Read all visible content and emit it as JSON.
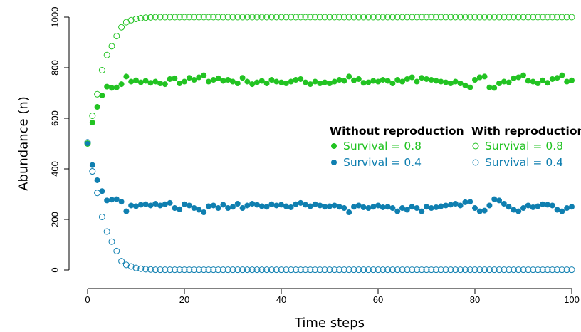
{
  "chart_data": {
    "type": "scatter",
    "xlabel": "Time steps",
    "ylabel": "Abundance (n)",
    "xlim": [
      0,
      100
    ],
    "ylim": [
      0,
      1000
    ],
    "xticks": [
      0,
      20,
      40,
      60,
      80,
      100
    ],
    "yticks": [
      0,
      200,
      400,
      600,
      800,
      1000
    ],
    "grid": false,
    "colors": {
      "green": "#22c322",
      "blue": "#0f7fb0"
    },
    "legend": {
      "placement": "right",
      "groups": [
        {
          "heading": "Without reproduction",
          "marker": "filled",
          "entries": [
            {
              "label": "Survival = 0.8",
              "color": "#22c322"
            },
            {
              "label": "Survival = 0.4",
              "color": "#0f7fb0"
            }
          ]
        },
        {
          "heading": "With reproduction",
          "marker": "open",
          "entries": [
            {
              "label": "Survival = 0.8",
              "color": "#22c322"
            },
            {
              "label": "Survival = 0.4",
              "color": "#0f7fb0"
            }
          ]
        }
      ]
    },
    "series": [
      {
        "marker": "filled",
        "color": "#22c322",
        "x": [
          0,
          1,
          2,
          3,
          4,
          5,
          6,
          7,
          8,
          9,
          10,
          11,
          12,
          13,
          14,
          15,
          16,
          17,
          18,
          19,
          20,
          21,
          22,
          23,
          24,
          25,
          26,
          27,
          28,
          29,
          30,
          31,
          32,
          33,
          34,
          35,
          36,
          37,
          38,
          39,
          40,
          41,
          42,
          43,
          44,
          45,
          46,
          47,
          48,
          49,
          50,
          51,
          52,
          53,
          54,
          55,
          56,
          57,
          58,
          59,
          60,
          61,
          62,
          63,
          64,
          65,
          66,
          67,
          68,
          69,
          70,
          71,
          72,
          73,
          74,
          75,
          76,
          77,
          78,
          79,
          80,
          81,
          82,
          83,
          84,
          85,
          86,
          87,
          88,
          89,
          90,
          91,
          92,
          93,
          94,
          95,
          96,
          97,
          98,
          99,
          100
        ],
        "y": [
          500,
          583,
          645,
          690,
          725,
          720,
          722,
          735,
          765,
          745,
          750,
          742,
          748,
          740,
          745,
          738,
          735,
          755,
          758,
          738,
          745,
          760,
          752,
          762,
          770,
          745,
          752,
          758,
          748,
          752,
          745,
          738,
          760,
          745,
          735,
          742,
          748,
          738,
          752,
          745,
          742,
          738,
          745,
          752,
          755,
          742,
          735,
          745,
          738,
          742,
          738,
          745,
          752,
          748,
          765,
          750,
          755,
          740,
          742,
          748,
          745,
          752,
          748,
          738,
          752,
          745,
          755,
          762,
          745,
          760,
          755,
          752,
          748,
          745,
          742,
          738,
          745,
          738,
          730,
          722,
          752,
          762,
          765,
          722,
          720,
          738,
          745,
          742,
          758,
          762,
          770,
          748,
          745,
          738,
          750,
          740,
          755,
          760,
          770,
          745,
          750
        ]
      },
      {
        "marker": "filled",
        "color": "#0f7fb0",
        "x": [
          0,
          1,
          2,
          3,
          4,
          5,
          6,
          7,
          8,
          9,
          10,
          11,
          12,
          13,
          14,
          15,
          16,
          17,
          18,
          19,
          20,
          21,
          22,
          23,
          24,
          25,
          26,
          27,
          28,
          29,
          30,
          31,
          32,
          33,
          34,
          35,
          36,
          37,
          38,
          39,
          40,
          41,
          42,
          43,
          44,
          45,
          46,
          47,
          48,
          49,
          50,
          51,
          52,
          53,
          54,
          55,
          56,
          57,
          58,
          59,
          60,
          61,
          62,
          63,
          64,
          65,
          66,
          67,
          68,
          69,
          70,
          71,
          72,
          73,
          74,
          75,
          76,
          77,
          78,
          79,
          80,
          81,
          82,
          83,
          84,
          85,
          86,
          87,
          88,
          89,
          90,
          91,
          92,
          93,
          94,
          95,
          96,
          97,
          98,
          99,
          100
        ],
        "y": [
          500,
          415,
          355,
          312,
          275,
          278,
          280,
          270,
          232,
          255,
          252,
          258,
          260,
          255,
          262,
          255,
          260,
          265,
          245,
          240,
          260,
          255,
          245,
          238,
          228,
          252,
          255,
          245,
          258,
          245,
          250,
          262,
          245,
          255,
          262,
          258,
          252,
          250,
          260,
          255,
          258,
          252,
          248,
          260,
          265,
          258,
          252,
          260,
          255,
          250,
          252,
          255,
          250,
          245,
          228,
          250,
          255,
          248,
          245,
          250,
          255,
          248,
          250,
          245,
          232,
          245,
          238,
          250,
          245,
          232,
          250,
          245,
          248,
          252,
          255,
          258,
          262,
          255,
          268,
          270,
          245,
          232,
          235,
          255,
          280,
          275,
          262,
          250,
          238,
          232,
          245,
          255,
          248,
          252,
          260,
          258,
          255,
          238,
          232,
          245,
          250
        ]
      },
      {
        "marker": "open",
        "color": "#22c322",
        "x": [
          0,
          1,
          2,
          3,
          4,
          5,
          6,
          7,
          8,
          9,
          10,
          11,
          12,
          13,
          14,
          15,
          16,
          17,
          18,
          19,
          20,
          21,
          22,
          23,
          24,
          25,
          26,
          27,
          28,
          29,
          30,
          31,
          32,
          33,
          34,
          35,
          36,
          37,
          38,
          39,
          40,
          41,
          42,
          43,
          44,
          45,
          46,
          47,
          48,
          49,
          50,
          51,
          52,
          53,
          54,
          55,
          56,
          57,
          58,
          59,
          60,
          61,
          62,
          63,
          64,
          65,
          66,
          67,
          68,
          69,
          70,
          71,
          72,
          73,
          74,
          75,
          76,
          77,
          78,
          79,
          80,
          81,
          82,
          83,
          84,
          85,
          86,
          87,
          88,
          89,
          90,
          91,
          92,
          93,
          94,
          95,
          96,
          97,
          98,
          99,
          100
        ],
        "y": [
          500,
          610,
          695,
          790,
          850,
          885,
          925,
          960,
          980,
          988,
          993,
          996,
          998,
          999,
          1000,
          1000,
          1000,
          1000,
          1000,
          1000,
          1000,
          1000,
          1000,
          1000,
          1000,
          1000,
          1000,
          1000,
          1000,
          1000,
          1000,
          1000,
          1000,
          1000,
          1000,
          1000,
          1000,
          1000,
          1000,
          1000,
          1000,
          1000,
          1000,
          1000,
          1000,
          1000,
          1000,
          1000,
          1000,
          1000,
          1000,
          1000,
          1000,
          1000,
          1000,
          1000,
          1000,
          1000,
          1000,
          1000,
          1000,
          1000,
          1000,
          1000,
          1000,
          1000,
          1000,
          1000,
          1000,
          1000,
          1000,
          1000,
          1000,
          1000,
          1000,
          1000,
          1000,
          1000,
          1000,
          1000,
          1000,
          1000,
          1000,
          1000,
          1000,
          1000,
          1000,
          1000,
          1000,
          1000,
          1000,
          1000,
          1000,
          1000,
          1000,
          1000,
          1000,
          1000,
          1000,
          1000,
          1000
        ]
      },
      {
        "marker": "open",
        "color": "#0f7fb0",
        "x": [
          0,
          1,
          2,
          3,
          4,
          5,
          6,
          7,
          8,
          9,
          10,
          11,
          12,
          13,
          14,
          15,
          16,
          17,
          18,
          19,
          20,
          21,
          22,
          23,
          24,
          25,
          26,
          27,
          28,
          29,
          30,
          31,
          32,
          33,
          34,
          35,
          36,
          37,
          38,
          39,
          40,
          41,
          42,
          43,
          44,
          45,
          46,
          47,
          48,
          49,
          50,
          51,
          52,
          53,
          54,
          55,
          56,
          57,
          58,
          59,
          60,
          61,
          62,
          63,
          64,
          65,
          66,
          67,
          68,
          69,
          70,
          71,
          72,
          73,
          74,
          75,
          76,
          77,
          78,
          79,
          80,
          81,
          82,
          83,
          84,
          85,
          86,
          87,
          88,
          89,
          90,
          91,
          92,
          93,
          94,
          95,
          96,
          97,
          98,
          99,
          100
        ],
        "y": [
          505,
          390,
          305,
          210,
          152,
          112,
          75,
          35,
          20,
          14,
          8,
          5,
          3,
          2,
          1,
          1,
          1,
          1,
          1,
          1,
          1,
          1,
          1,
          1,
          1,
          1,
          1,
          1,
          1,
          1,
          1,
          1,
          1,
          1,
          1,
          1,
          1,
          1,
          1,
          1,
          1,
          1,
          1,
          1,
          1,
          1,
          1,
          1,
          1,
          1,
          1,
          1,
          1,
          1,
          1,
          1,
          1,
          1,
          1,
          1,
          1,
          1,
          1,
          1,
          1,
          1,
          1,
          1,
          1,
          1,
          1,
          1,
          1,
          1,
          1,
          1,
          1,
          1,
          1,
          1,
          1,
          1,
          1,
          1,
          1,
          1,
          1,
          1,
          1,
          1,
          1,
          1,
          1,
          1,
          1,
          1,
          1,
          1,
          1,
          1,
          1
        ]
      }
    ]
  }
}
